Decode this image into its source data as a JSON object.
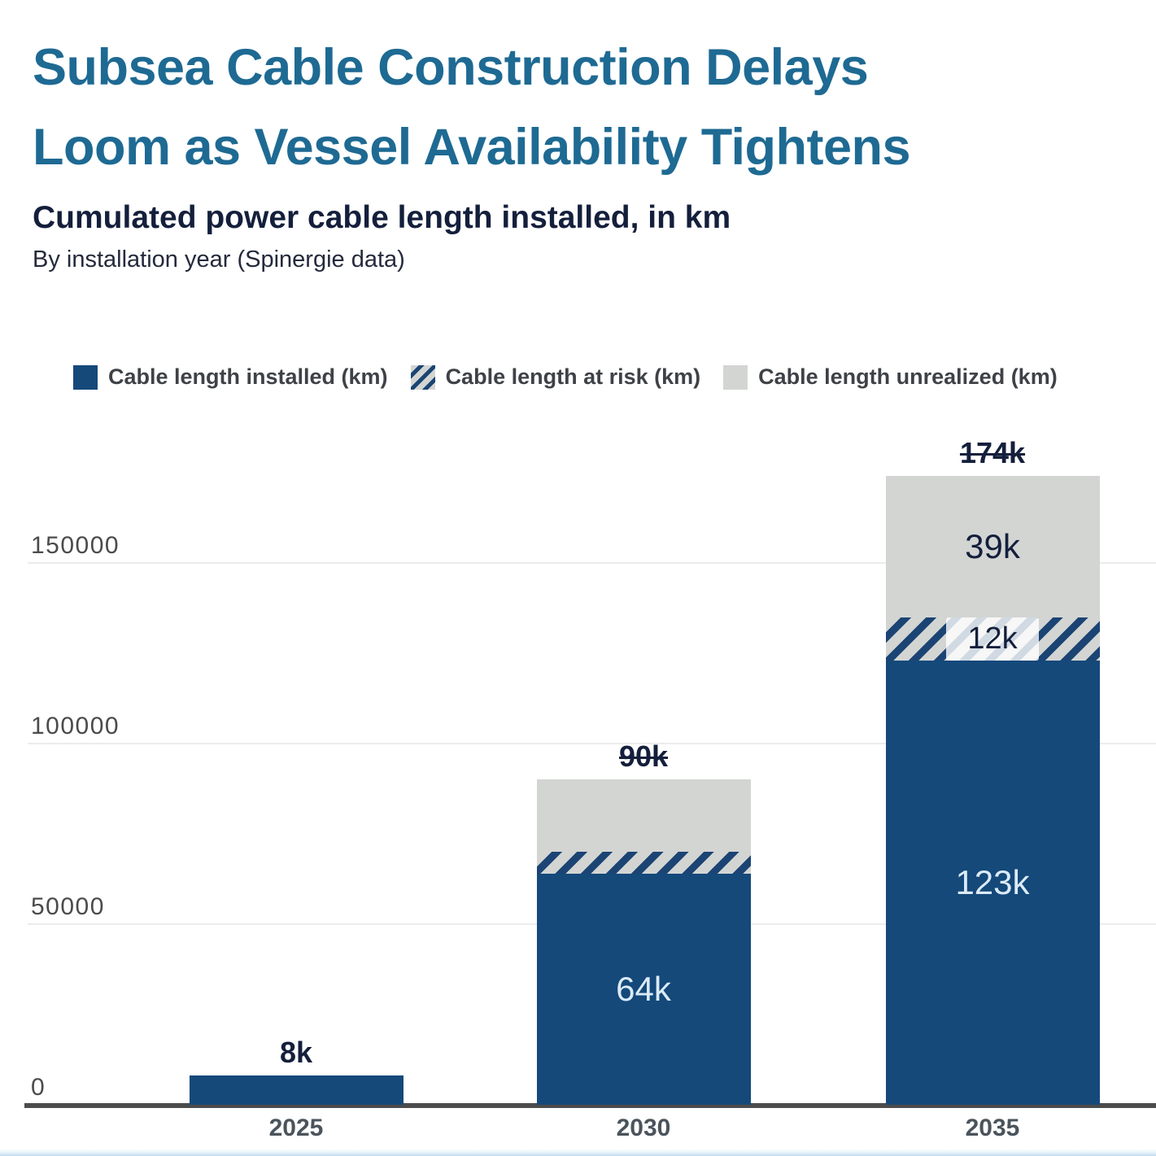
{
  "header": {
    "title_line1": "Subsea Cable Construction Delays",
    "title_line2": "Loom as Vessel Availability Tightens",
    "subtitle": "Cumulated power cable length installed, in km",
    "dek": "By installation year (Spinergie data)"
  },
  "colors": {
    "title-blue": "#1e6a93",
    "navy": "#141f3c",
    "bar-blue": "#14497a",
    "hatch-navy": "#1b4474",
    "seg-gray": "#d3d5d3",
    "light-text": "#dcebf7",
    "grid": "#ececec",
    "axis": "#4c4c4c",
    "tick": "#4b4b4b",
    "xlabel": "#4b545c",
    "legend-text": "#3e4247",
    "footer-blue": "#bed9ee"
  },
  "chart_data": {
    "type": "bar",
    "stacked": true,
    "title": "Cumulated power cable length installed, in km",
    "subtitle": "By installation year (Spinergie data)",
    "xlabel": "",
    "ylabel": "",
    "grid": true,
    "legend_position": "top",
    "categories": [
      "2025",
      "2030",
      "2035"
    ],
    "series": [
      {
        "name": "Cable length installed (km)",
        "key": "installed",
        "style": "solid-dark-blue",
        "values": [
          8000,
          64000,
          123000
        ]
      },
      {
        "name": "Cable length at risk (km)",
        "key": "at_risk",
        "style": "diagonal-hatch-navy-on-gray",
        "values": [
          0,
          6000,
          12000
        ]
      },
      {
        "name": "Cable length unrealized (km)",
        "key": "unrealized",
        "style": "solid-light-gray",
        "values": [
          0,
          20000,
          39000
        ]
      }
    ],
    "segment_labels": [
      [
        null,
        null,
        null
      ],
      [
        "64k",
        null,
        null
      ],
      [
        "123k",
        "12k",
        "39k"
      ]
    ],
    "total_labels": [
      {
        "text": "8k",
        "strikethrough": false
      },
      {
        "text": "90k",
        "strikethrough": true
      },
      {
        "text": "174k",
        "strikethrough": true
      }
    ],
    "yticks": [
      "0",
      "50000",
      "100000",
      "150000"
    ],
    "ytick_values": [
      0,
      50000,
      100000,
      150000
    ],
    "ylim": [
      0,
      180000
    ]
  }
}
